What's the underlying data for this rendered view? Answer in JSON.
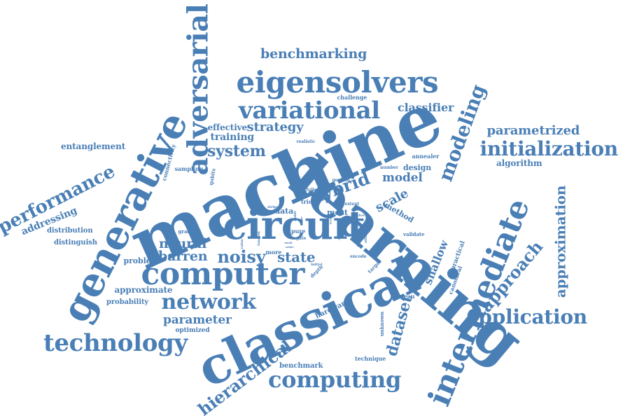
{
  "word_color": "#4a7fb6",
  "background_color": "#ffffff",
  "words": [
    {
      "text": "machine",
      "weight": 100,
      "orientation": "tilt-up"
    },
    {
      "text": "learning",
      "weight": 92,
      "orientation": "tilt-down"
    },
    {
      "text": "classical",
      "weight": 78,
      "orientation": "tilt-up"
    },
    {
      "text": "circuit",
      "weight": 62,
      "orientation": "horizontal"
    },
    {
      "text": "generative",
      "weight": 60,
      "orientation": "tilt-up-steep"
    },
    {
      "text": "computer",
      "weight": 48,
      "orientation": "horizontal"
    },
    {
      "text": "eigensolvers",
      "weight": 46,
      "orientation": "horizontal"
    },
    {
      "text": "intermediate",
      "weight": 48,
      "orientation": "tilt-up-steep"
    },
    {
      "text": "adversarial",
      "weight": 42,
      "orientation": "vertical-up"
    },
    {
      "text": "variational",
      "weight": 36,
      "orientation": "horizontal"
    },
    {
      "text": "technology",
      "weight": 36,
      "orientation": "horizontal"
    },
    {
      "text": "computing",
      "weight": 34,
      "orientation": "horizontal"
    },
    {
      "text": "network",
      "weight": 33,
      "orientation": "horizontal"
    },
    {
      "text": "application",
      "weight": 30,
      "orientation": "horizontal"
    },
    {
      "text": "initialization",
      "weight": 30,
      "orientation": "horizontal"
    },
    {
      "text": "modeling",
      "weight": 30,
      "orientation": "tilt-up-steep"
    },
    {
      "text": "performance",
      "weight": 28,
      "orientation": "tilt-up"
    },
    {
      "text": "hybrid",
      "weight": 27,
      "orientation": "tilt-up"
    },
    {
      "text": "approach",
      "weight": 26,
      "orientation": "tilt-up"
    },
    {
      "text": "hierarchical",
      "weight": 26,
      "orientation": "tilt-up"
    },
    {
      "text": "noisy",
      "weight": 26,
      "orientation": "horizontal"
    },
    {
      "text": "dataset",
      "weight": 24,
      "orientation": "tilt-up-steep"
    },
    {
      "text": "system",
      "weight": 24,
      "orientation": "horizontal"
    },
    {
      "text": "approximation",
      "weight": 22,
      "orientation": "vertical-up"
    },
    {
      "text": "state",
      "weight": 22,
      "orientation": "horizontal"
    },
    {
      "text": "neural",
      "weight": 21,
      "orientation": "horizontal"
    },
    {
      "text": "barren",
      "weight": 21,
      "orientation": "horizontal"
    },
    {
      "text": "benchmarking",
      "weight": 21,
      "orientation": "horizontal"
    },
    {
      "text": "parametrized",
      "weight": 20,
      "orientation": "horizontal"
    },
    {
      "text": "strategy",
      "weight": 20,
      "orientation": "horizontal"
    },
    {
      "text": "scale",
      "weight": 20,
      "orientation": "tilt-up"
    },
    {
      "text": "model",
      "weight": 19,
      "orientation": "horizontal"
    },
    {
      "text": "parameter",
      "weight": 19,
      "orientation": "horizontal"
    },
    {
      "text": "classifier",
      "weight": 18,
      "orientation": "horizontal"
    },
    {
      "text": "shallow",
      "weight": 18,
      "orientation": "tilt-up-steep"
    },
    {
      "text": "training",
      "weight": 16,
      "orientation": "horizontal"
    },
    {
      "text": "addressing",
      "weight": 16,
      "orientation": "tilt-up"
    },
    {
      "text": "effective",
      "weight": 14,
      "orientation": "horizontal"
    },
    {
      "text": "entanglement",
      "weight": 14,
      "orientation": "horizontal"
    },
    {
      "text": "approximate",
      "weight": 14,
      "orientation": "horizontal"
    },
    {
      "text": "algorithm",
      "weight": 14,
      "orientation": "horizontal"
    },
    {
      "text": "method",
      "weight": 13,
      "orientation": "tilt-down"
    },
    {
      "text": "design",
      "weight": 13,
      "orientation": "horizontal"
    },
    {
      "text": "problem",
      "weight": 13,
      "orientation": "horizontal"
    },
    {
      "text": "data",
      "weight": 13,
      "orientation": "horizontal"
    },
    {
      "text": "most",
      "weight": 13,
      "orientation": "horizontal"
    },
    {
      "text": "distribution",
      "weight": 12,
      "orientation": "horizontal"
    },
    {
      "text": "distinguish",
      "weight": 12,
      "orientation": "horizontal"
    },
    {
      "text": "probability",
      "weight": 12,
      "orientation": "horizontal"
    },
    {
      "text": "benchmark",
      "weight": 12,
      "orientation": "horizontal"
    },
    {
      "text": "hardware",
      "weight": 12,
      "orientation": "tilt-up"
    },
    {
      "text": "optimized",
      "weight": 11,
      "orientation": "horizontal"
    },
    {
      "text": "practical",
      "weight": 11,
      "orientation": "tilt-up-steep"
    },
    {
      "text": "sampling",
      "weight": 10,
      "orientation": "horizontal"
    },
    {
      "text": "connectivity",
      "weight": 10,
      "orientation": "vertical-up"
    },
    {
      "text": "annealer",
      "weight": 10,
      "orientation": "horizontal"
    },
    {
      "text": "canonical",
      "weight": 10,
      "orientation": "tilt-up-steep"
    },
    {
      "text": "technique",
      "weight": 10,
      "orientation": "horizontal"
    },
    {
      "text": "plateau",
      "weight": 10,
      "orientation": "horizontal"
    },
    {
      "text": "challenge",
      "weight": 10,
      "orientation": "horizontal"
    },
    {
      "text": "more",
      "weight": 10,
      "orientation": "horizontal"
    },
    {
      "text": "pure",
      "weight": 10,
      "orientation": "horizontal"
    },
    {
      "text": "tries",
      "weight": 10,
      "orientation": "horizontal"
    },
    {
      "text": "qubits",
      "weight": 9,
      "orientation": "vertical-up"
    },
    {
      "text": "gradient",
      "weight": 9,
      "orientation": "horizontal"
    },
    {
      "text": "validate",
      "weight": 9,
      "orientation": "horizontal"
    },
    {
      "text": "depth",
      "weight": 9,
      "orientation": "tilt-up"
    },
    {
      "text": "unknown",
      "weight": 9,
      "orientation": "vertical-up"
    },
    {
      "text": "realistic",
      "weight": 8,
      "orientation": "horizontal"
    },
    {
      "text": "number",
      "weight": 8,
      "orientation": "horizontal"
    },
    {
      "text": "general",
      "weight": 8,
      "orientation": "horizontal"
    },
    {
      "text": "fullest",
      "weight": 8,
      "orientation": "horizontal"
    },
    {
      "text": "extent",
      "weight": 8,
      "orientation": "horizontal"
    },
    {
      "text": "stripe",
      "weight": 7,
      "orientation": "horizontal"
    },
    {
      "text": "value",
      "weight": 7,
      "orientation": "vertical-up"
    },
    {
      "text": "tandem",
      "weight": 7,
      "orientation": "vertical-up"
    },
    {
      "text": "qubit",
      "weight": 7,
      "orientation": "vertical-up"
    },
    {
      "text": "gate",
      "weight": 7,
      "orientation": "horizontal"
    },
    {
      "text": "several",
      "weight": 7,
      "orientation": "vertical-up"
    },
    {
      "text": "efficient",
      "weight": 7,
      "orientation": "vertical-up"
    },
    {
      "text": "native",
      "weight": 6,
      "orientation": "vertical-down"
    },
    {
      "text": "encode",
      "weight": 7,
      "orientation": "horizontal"
    },
    {
      "text": "target",
      "weight": 8,
      "orientation": "tilt-up"
    },
    {
      "text": "initial",
      "weight": 6,
      "orientation": "horizontal"
    },
    {
      "text": "derive",
      "weight": 6,
      "orientation": "horizontal"
    },
    {
      "text": "work",
      "weight": 5,
      "orientation": "horizontal"
    },
    {
      "text": "noise",
      "weight": 5,
      "orientation": "horizontal"
    },
    {
      "text": "terms",
      "weight": 5,
      "orientation": "vertical-up"
    },
    {
      "text": "use",
      "weight": 5,
      "orientation": "vertical-up"
    }
  ]
}
